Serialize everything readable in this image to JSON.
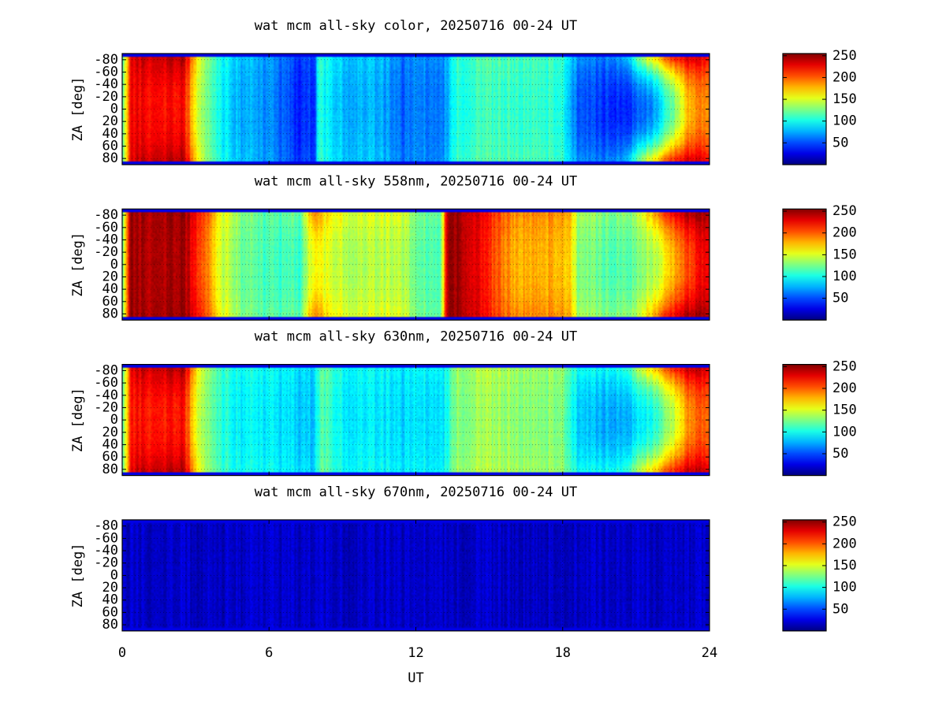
{
  "chart_data": [
    {
      "type": "heatmap",
      "title": "wat mcm all-sky color, 20250716 00-24 UT",
      "ylabel": "ZA [deg]",
      "xlim": [
        0,
        24
      ],
      "ylim": [
        -90,
        90
      ],
      "yticks": [
        "-80",
        "-60",
        "-40",
        "-20",
        "0",
        "20",
        "40",
        "60",
        "80"
      ],
      "colorbar": {
        "range": [
          0,
          255
        ],
        "ticks": [
          "250",
          "200",
          "150",
          "100",
          "50"
        ]
      },
      "grid": true,
      "intensity_profile": {
        "x": [
          0,
          0.3,
          0.6,
          2.5,
          3.0,
          3.5,
          4.5,
          6.0,
          6.8,
          7.0,
          7.9,
          8.0,
          9.0,
          10.5,
          11.5,
          12.0,
          13.0,
          13.3,
          13.6,
          15.0,
          17.0,
          18.0,
          18.6,
          19.5,
          20.5,
          21.5,
          22.5,
          23.2,
          24.0
        ],
        "center": [
          105,
          218,
          225,
          220,
          160,
          120,
          80,
          65,
          50,
          40,
          45,
          100,
          80,
          75,
          55,
          65,
          58,
          75,
          105,
          110,
          110,
          105,
          55,
          45,
          40,
          60,
          120,
          180,
          190
        ],
        "edge": [
          105,
          218,
          235,
          240,
          175,
          125,
          85,
          68,
          55,
          45,
          50,
          105,
          85,
          80,
          60,
          68,
          62,
          80,
          110,
          115,
          115,
          110,
          70,
          60,
          70,
          150,
          210,
          230,
          220
        ]
      }
    },
    {
      "type": "heatmap",
      "title": "wat mcm all-sky 558nm, 20250716 00-24 UT",
      "ylabel": "ZA [deg]",
      "xlim": [
        0,
        24
      ],
      "ylim": [
        -90,
        90
      ],
      "yticks": [
        "-80",
        "-60",
        "-40",
        "-20",
        "0",
        "20",
        "40",
        "60",
        "80"
      ],
      "colorbar": {
        "range": [
          0,
          255
        ],
        "ticks": [
          "250",
          "200",
          "150",
          "100",
          "50"
        ]
      },
      "grid": true,
      "intensity_profile": {
        "x": [
          0,
          0.3,
          2.5,
          3.2,
          4.0,
          5.0,
          6.0,
          7.3,
          7.8,
          8.3,
          9.5,
          11.5,
          12.0,
          12.6,
          13.0,
          13.3,
          13.8,
          15.0,
          16.0,
          17.5,
          18.3,
          18.6,
          20.0,
          21.0,
          22.0,
          23.0,
          24.0
        ],
        "center": [
          110,
          245,
          245,
          210,
          150,
          120,
          110,
          110,
          160,
          150,
          140,
          140,
          120,
          115,
          110,
          250,
          250,
          210,
          180,
          180,
          175,
          130,
          115,
          120,
          150,
          200,
          230
        ],
        "edge": [
          110,
          245,
          248,
          220,
          160,
          125,
          115,
          120,
          190,
          165,
          150,
          150,
          125,
          120,
          115,
          250,
          250,
          215,
          190,
          190,
          185,
          140,
          125,
          135,
          200,
          240,
          245
        ]
      }
    },
    {
      "type": "heatmap",
      "title": "wat mcm all-sky 630nm, 20250716 00-24 UT",
      "ylabel": "ZA [deg]",
      "xlim": [
        0,
        24
      ],
      "ylim": [
        -90,
        90
      ],
      "yticks": [
        "-80",
        "-60",
        "-40",
        "-20",
        "0",
        "20",
        "40",
        "60",
        "80"
      ],
      "colorbar": {
        "range": [
          0,
          255
        ],
        "ticks": [
          "250",
          "200",
          "150",
          "100",
          "50"
        ]
      },
      "grid": true,
      "intensity_profile": {
        "x": [
          0,
          0.3,
          0.6,
          2.5,
          3.0,
          3.5,
          4.5,
          6.0,
          7.0,
          7.8,
          8.2,
          9.0,
          10.5,
          11.5,
          12.0,
          13.0,
          13.3,
          13.6,
          15.0,
          17.0,
          18.0,
          18.6,
          19.5,
          20.5,
          21.5,
          22.5,
          23.2,
          24.0
        ],
        "center": [
          105,
          210,
          220,
          218,
          160,
          125,
          95,
          90,
          85,
          80,
          115,
          95,
          90,
          85,
          90,
          85,
          100,
          130,
          135,
          130,
          130,
          85,
          75,
          75,
          95,
          140,
          190,
          200
        ],
        "edge": [
          105,
          215,
          235,
          240,
          175,
          130,
          100,
          95,
          90,
          85,
          120,
          100,
          95,
          90,
          95,
          90,
          105,
          135,
          140,
          135,
          135,
          100,
          95,
          100,
          160,
          210,
          235,
          230
        ]
      }
    },
    {
      "type": "heatmap",
      "title": "wat mcm all-sky 670nm, 20250716 00-24 UT",
      "ylabel": "ZA [deg]",
      "xlabel": "UT",
      "xlim": [
        0,
        24
      ],
      "ylim": [
        -90,
        90
      ],
      "xticks": [
        "0",
        "6",
        "12",
        "18",
        "24"
      ],
      "yticks": [
        "-80",
        "-60",
        "-40",
        "-20",
        "0",
        "20",
        "40",
        "60",
        "80"
      ],
      "colorbar": {
        "range": [
          0,
          255
        ],
        "ticks": [
          "250",
          "200",
          "150",
          "100",
          "50"
        ]
      },
      "grid": true,
      "intensity_profile": {
        "x": [
          0,
          24
        ],
        "center": [
          18,
          18
        ],
        "edge": [
          18,
          18
        ]
      }
    }
  ]
}
